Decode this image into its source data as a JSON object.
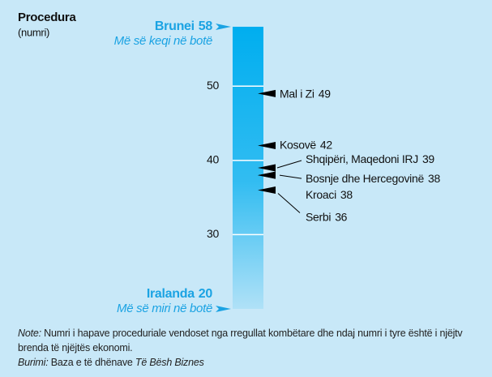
{
  "chart_data": {
    "type": "scale",
    "title": "Procedura",
    "subtitle": "(numri)",
    "ylim": [
      20,
      58
    ],
    "yticks": [
      30,
      40,
      50
    ],
    "color": "#00aeef",
    "top": {
      "name": "Brunei",
      "value": 58,
      "note": "Më së keqi në botë"
    },
    "bottom": {
      "name": "Iralanda",
      "value": 20,
      "note": "Më së miri në botë"
    },
    "points": [
      {
        "name": "Mal i Zi",
        "value": 49
      },
      {
        "name": "Kosovë",
        "value": 42
      },
      {
        "name": "Shqipëri, Maqedoni IRJ",
        "value": 39
      },
      {
        "name": "Bosnje dhe Hercegovinë",
        "value": 38
      },
      {
        "name": "Kroaci",
        "value": 38
      },
      {
        "name": "Serbi",
        "value": 36
      }
    ],
    "note": {
      "label": "Note:",
      "text": "Numri i hapave proceduriale vendoset nga rregullat kombëtare dhe ndaj numri i tyre është i njëjtv brenda të njëjtës ekonomi."
    },
    "source": {
      "label": "Burimi:",
      "text": "Baza e të dhënave",
      "italic": "Të Bësh Biznes"
    }
  }
}
